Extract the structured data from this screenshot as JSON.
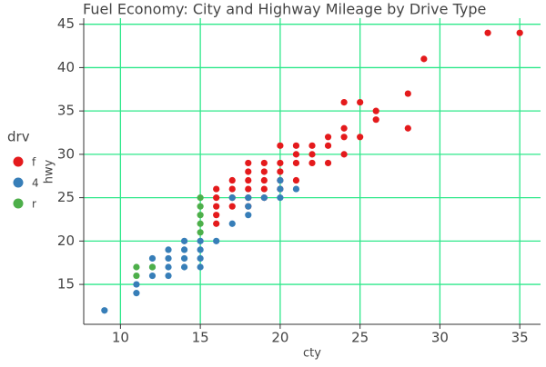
{
  "chart_data": {
    "type": "scatter",
    "title": "Fuel Economy: City and Highway Mileage by Drive Type",
    "x_label": "cty",
    "y_label": "hwy",
    "legend_title": "drv",
    "legend_position": "left",
    "grid": true,
    "grid_color": "#2ee88a",
    "xlim": [
      7.7,
      36.3
    ],
    "xticks": [
      10,
      15,
      20,
      25,
      30,
      35
    ],
    "ylim": [
      10.4,
      45.7
    ],
    "yticks": [
      15,
      20,
      25,
      30,
      35,
      40,
      45
    ],
    "series": [
      {
        "name": "f",
        "color": "#e41a1c",
        "x": [
          16,
          16,
          16,
          16,
          16,
          17,
          17,
          17,
          17,
          18,
          18,
          18,
          18,
          18,
          18,
          19,
          19,
          19,
          19,
          19,
          20,
          20,
          20,
          20,
          20,
          21,
          21,
          21,
          21,
          22,
          22,
          22,
          23,
          23,
          23,
          24,
          24,
          24,
          24,
          25,
          25,
          26,
          26,
          28,
          28,
          29,
          33,
          35
        ],
        "y": [
          22,
          23,
          24,
          25,
          26,
          24,
          25,
          26,
          27,
          24,
          25,
          26,
          27,
          28,
          29,
          25,
          26,
          27,
          28,
          29,
          26,
          27,
          28,
          29,
          31,
          27,
          29,
          30,
          31,
          29,
          30,
          31,
          29,
          31,
          32,
          30,
          32,
          33,
          36,
          32,
          36,
          34,
          35,
          33,
          37,
          41,
          44,
          44
        ]
      },
      {
        "name": "4",
        "color": "#377eb8",
        "x": [
          9,
          11,
          11,
          12,
          12,
          12,
          13,
          13,
          13,
          13,
          14,
          14,
          14,
          14,
          15,
          15,
          15,
          15,
          16,
          17,
          17,
          18,
          18,
          18,
          19,
          20,
          20,
          20,
          21
        ],
        "y": [
          12,
          14,
          15,
          16,
          17,
          18,
          16,
          17,
          18,
          19,
          17,
          18,
          19,
          20,
          17,
          18,
          19,
          20,
          20,
          22,
          25,
          23,
          24,
          25,
          25,
          25,
          26,
          27,
          26
        ]
      },
      {
        "name": "r",
        "color": "#4daf4a",
        "x": [
          11,
          11,
          12,
          15,
          15,
          15,
          15,
          15
        ],
        "y": [
          16,
          17,
          17,
          21,
          22,
          23,
          24,
          25
        ]
      }
    ]
  }
}
